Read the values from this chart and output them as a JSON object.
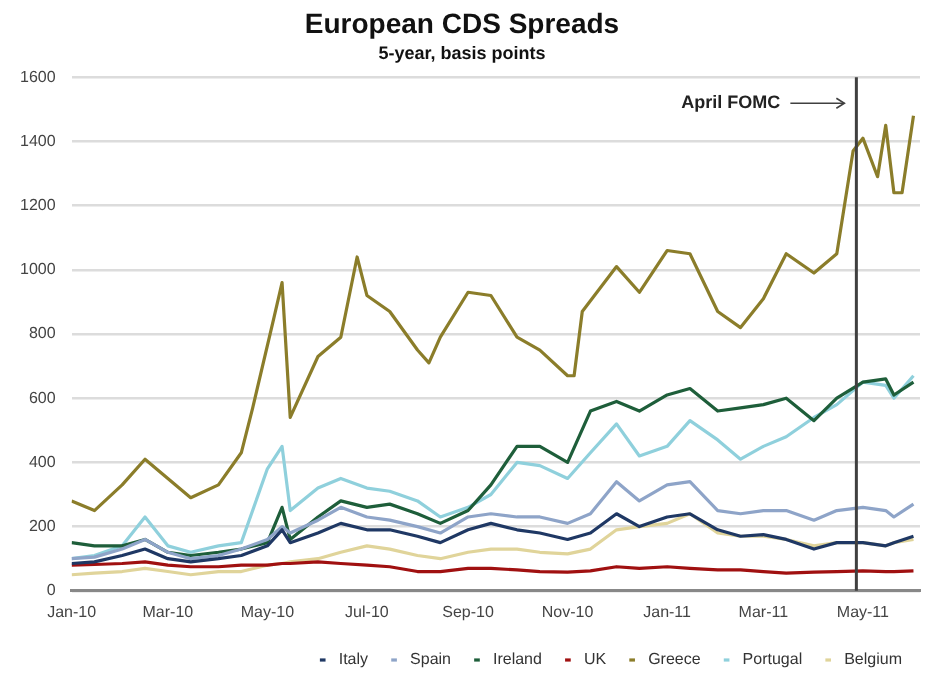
{
  "chart_data": {
    "type": "line",
    "title": "European CDS Spreads",
    "subtitle": "5-year, basis points",
    "x": [
      "2010-01-01",
      "2010-01-15",
      "2010-02-01",
      "2010-02-15",
      "2010-03-01",
      "2010-03-15",
      "2010-04-01",
      "2010-04-15",
      "2010-05-01",
      "2010-05-10",
      "2010-05-15",
      "2010-06-01",
      "2010-06-15",
      "2010-07-01",
      "2010-07-15",
      "2010-08-01",
      "2010-08-15",
      "2010-09-01",
      "2010-09-15",
      "2010-10-01",
      "2010-10-15",
      "2010-11-01",
      "2010-11-15",
      "2010-12-01",
      "2010-12-15",
      "2011-01-01",
      "2011-01-15",
      "2011-02-01",
      "2011-02-15",
      "2011-03-01",
      "2011-03-15",
      "2011-04-01",
      "2011-04-15",
      "2011-05-01",
      "2011-05-15",
      "2011-05-20",
      "2011-06-01"
    ],
    "series": [
      {
        "name": "Italy",
        "color": "#1f3864",
        "values": [
          85,
          90,
          110,
          130,
          100,
          90,
          100,
          110,
          140,
          190,
          150,
          180,
          210,
          190,
          190,
          170,
          150,
          190,
          210,
          190,
          180,
          160,
          180,
          240,
          200,
          230,
          240,
          190,
          170,
          175,
          160,
          130,
          150,
          150,
          140,
          150,
          170
        ]
      },
      {
        "name": "Spain",
        "color": "#8ea4c8",
        "values": [
          100,
          105,
          130,
          160,
          120,
          100,
          110,
          130,
          160,
          200,
          180,
          220,
          260,
          230,
          220,
          200,
          180,
          230,
          240,
          230,
          230,
          210,
          240,
          340,
          280,
          330,
          340,
          250,
          240,
          250,
          250,
          220,
          250,
          260,
          250,
          230,
          270
        ]
      },
      {
        "name": "Ireland",
        "color": "#1e5e3a",
        "values": [
          150,
          140,
          140,
          160,
          120,
          110,
          120,
          130,
          150,
          260,
          160,
          230,
          280,
          260,
          270,
          240,
          210,
          250,
          330,
          450,
          450,
          400,
          560,
          590,
          560,
          610,
          630,
          560,
          570,
          580,
          600,
          530,
          600,
          650,
          660,
          610,
          650
        ]
      },
      {
        "name": "UK",
        "color": "#a01010",
        "values": [
          80,
          82,
          85,
          90,
          80,
          75,
          75,
          80,
          80,
          85,
          85,
          90,
          85,
          80,
          75,
          60,
          60,
          70,
          70,
          65,
          60,
          58,
          62,
          75,
          70,
          75,
          70,
          65,
          65,
          60,
          55,
          58,
          60,
          62,
          60,
          60,
          62
        ]
      },
      {
        "name": "Greece",
        "color": "#8b7d2a",
        "x": [
          "2010-01-01",
          "2010-01-15",
          "2010-02-01",
          "2010-02-15",
          "2010-03-01",
          "2010-03-15",
          "2010-04-01",
          "2010-04-15",
          "2010-04-22",
          "2010-05-05",
          "2010-05-10",
          "2010-05-15",
          "2010-06-01",
          "2010-06-15",
          "2010-06-25",
          "2010-07-01",
          "2010-07-15",
          "2010-08-01",
          "2010-08-08",
          "2010-08-15",
          "2010-09-01",
          "2010-09-15",
          "2010-10-01",
          "2010-10-15",
          "2010-11-01",
          "2010-11-05",
          "2010-11-10",
          "2010-12-01",
          "2010-12-15",
          "2011-01-01",
          "2011-01-15",
          "2011-02-01",
          "2011-02-15",
          "2011-03-01",
          "2011-03-15",
          "2011-04-01",
          "2011-04-15",
          "2011-04-25",
          "2011-05-01",
          "2011-05-10",
          "2011-05-15",
          "2011-05-20",
          "2011-05-25",
          "2011-06-01"
        ],
        "values": [
          280,
          250,
          330,
          410,
          350,
          290,
          330,
          430,
          570,
          850,
          960,
          540,
          730,
          790,
          1040,
          920,
          870,
          750,
          710,
          790,
          930,
          920,
          790,
          750,
          670,
          670,
          870,
          1010,
          930,
          1060,
          1050,
          870,
          820,
          910,
          1050,
          990,
          1050,
          1370,
          1410,
          1290,
          1450,
          1240,
          1240,
          1480
        ]
      },
      {
        "name": "Portugal",
        "color": "#8fd0dc",
        "values": [
          100,
          110,
          140,
          230,
          140,
          120,
          140,
          150,
          380,
          450,
          250,
          320,
          350,
          320,
          310,
          280,
          230,
          260,
          300,
          400,
          390,
          350,
          430,
          520,
          420,
          450,
          530,
          470,
          410,
          450,
          480,
          540,
          580,
          650,
          640,
          600,
          670
        ]
      },
      {
        "name": "Belgium",
        "color": "#e0d49a",
        "values": [
          50,
          55,
          60,
          70,
          60,
          50,
          60,
          60,
          80,
          85,
          90,
          100,
          120,
          140,
          130,
          110,
          100,
          120,
          130,
          130,
          120,
          115,
          130,
          190,
          200,
          210,
          240,
          180,
          170,
          170,
          160,
          140,
          150,
          150,
          140,
          150,
          160
        ]
      }
    ],
    "xlim": [
      "2010-01-01",
      "2011-06-05"
    ],
    "xticks": [
      {
        "value": "2010-01-01",
        "label": "Jan-10"
      },
      {
        "value": "2010-03-01",
        "label": "Mar-10"
      },
      {
        "value": "2010-05-01",
        "label": "May-10"
      },
      {
        "value": "2010-07-01",
        "label": "Jul-10"
      },
      {
        "value": "2010-09-01",
        "label": "Sep-10"
      },
      {
        "value": "2010-11-01",
        "label": "Nov-10"
      },
      {
        "value": "2011-01-01",
        "label": "Jan-11"
      },
      {
        "value": "2011-03-01",
        "label": "Mar-11"
      },
      {
        "value": "2011-05-01",
        "label": "May-11"
      }
    ],
    "ylim": [
      0,
      1600
    ],
    "yticks": [
      0,
      200,
      400,
      600,
      800,
      1000,
      1200,
      1400,
      1600
    ],
    "ref_lines": [
      {
        "axis": "x",
        "value": "2011-04-27",
        "label": "April FOMC",
        "color": "#404040"
      }
    ],
    "grid": "y",
    "legend": "bottom",
    "marker": "none",
    "line_style": "solid"
  }
}
